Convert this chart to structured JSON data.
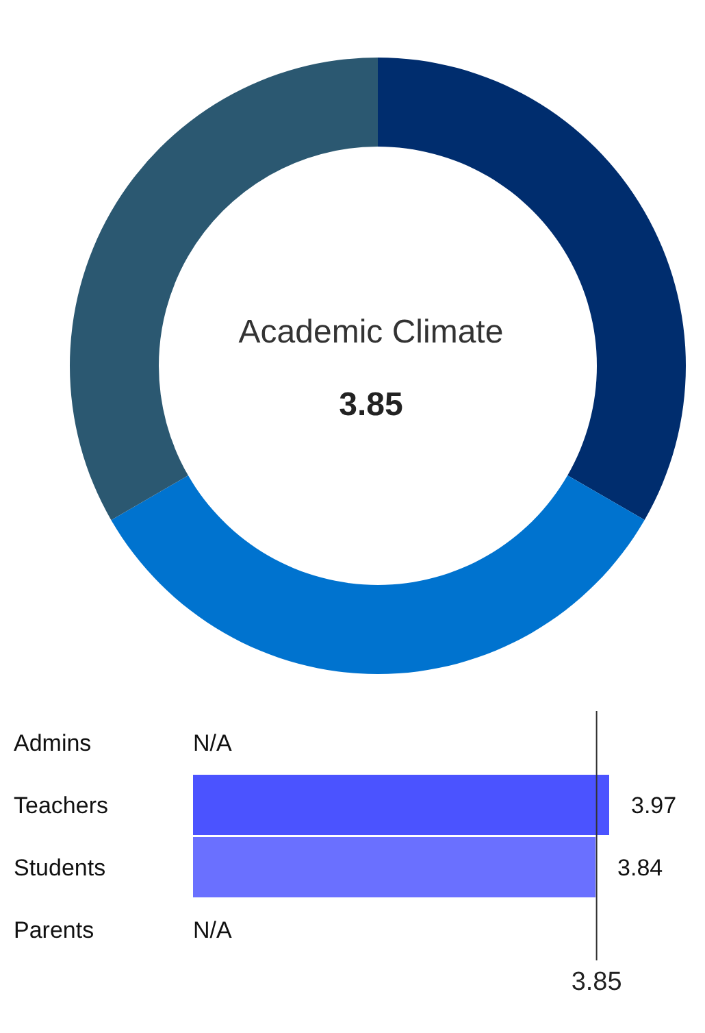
{
  "chart_data": [
    {
      "type": "donut",
      "title": "Academic Climate",
      "annotations": [
        "3.85"
      ],
      "categories": [
        null,
        null,
        null
      ],
      "values": [
        33.33,
        33.33,
        33.34
      ],
      "colors": [
        "#002d6e",
        "#0073cf",
        "#2b5871"
      ]
    },
    {
      "type": "bar",
      "orientation": "horizontal",
      "categories": [
        "Admins",
        "Teachers",
        "Students",
        "Parents"
      ],
      "values": [
        null,
        3.97,
        3.84,
        null
      ],
      "colors": [
        "#4b53ff",
        "#4b53ff",
        "#6a70ff",
        "#6a70ff"
      ],
      "value_labels": [
        "N/A",
        "3.97",
        "3.84",
        "N/A"
      ],
      "tick_labels": "y",
      "ref_lines": [
        {
          "axis": "x",
          "value": 3.85,
          "label": "3.85",
          "color": "#333333"
        }
      ]
    }
  ]
}
